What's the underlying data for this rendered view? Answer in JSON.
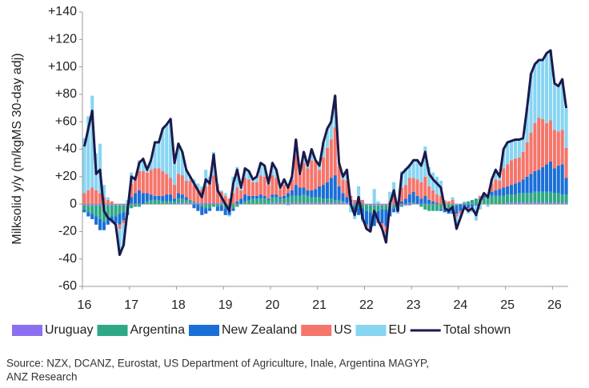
{
  "chart_data": {
    "type": "bar",
    "stacked": true,
    "y_label": "Milksolid y/y (m/kgMS 30-day adj)",
    "ylim": [
      -60,
      140
    ],
    "yticks": [
      -60,
      -40,
      -20,
      0,
      {
        "value": 20,
        "label": "+20"
      },
      {
        "value": 40,
        "label": "+40"
      },
      {
        "value": 60,
        "label": "+60"
      },
      {
        "value": 80,
        "label": "+80"
      },
      {
        "value": 100,
        "label": "+100"
      },
      {
        "value": 120,
        "label": "+120"
      },
      {
        "value": 140,
        "label": "+140"
      }
    ],
    "categories": [
      "16",
      null,
      null,
      null,
      null,
      null,
      null,
      null,
      null,
      null,
      null,
      null,
      "17",
      null,
      null,
      null,
      null,
      null,
      null,
      null,
      null,
      null,
      null,
      null,
      "18",
      null,
      null,
      null,
      null,
      null,
      null,
      null,
      null,
      null,
      null,
      null,
      "19",
      null,
      null,
      null,
      null,
      null,
      null,
      null,
      null,
      null,
      null,
      null,
      "20",
      null,
      null,
      null,
      null,
      null,
      null,
      null,
      null,
      null,
      null,
      null,
      "21",
      null,
      null,
      null,
      null,
      null,
      null,
      null,
      null,
      null,
      null,
      null,
      "22",
      null,
      null,
      null,
      null,
      null,
      null,
      null,
      null,
      null,
      null,
      null,
      "23",
      null,
      null,
      null,
      null,
      null,
      null,
      null,
      null,
      null,
      null,
      null,
      "24",
      null,
      null,
      null,
      null,
      null,
      null,
      null,
      null,
      null,
      null,
      null,
      "25",
      null,
      null,
      null,
      null,
      null,
      null,
      null,
      null,
      null,
      null,
      null,
      "26",
      null,
      null,
      null
    ],
    "series": [
      {
        "name": "Uruguay",
        "color": "#8c6ff0",
        "values": [
          -1,
          -1,
          -1,
          -1,
          -1,
          -1,
          -1,
          -1,
          -1,
          -1,
          -1,
          -1,
          0,
          0,
          0,
          0,
          0,
          0,
          0,
          0,
          0,
          0,
          0,
          0,
          1,
          1,
          1,
          1,
          1,
          1,
          1,
          1,
          1,
          1,
          1,
          1,
          0,
          0,
          0,
          0,
          0,
          0,
          0,
          0,
          0,
          0,
          0,
          0,
          1,
          1,
          1,
          1,
          1,
          1,
          1,
          1,
          1,
          1,
          1,
          1,
          1,
          1,
          1,
          1,
          1,
          1,
          1,
          1,
          1,
          1,
          1,
          1,
          -1,
          -1,
          -1,
          -1,
          -1,
          -1,
          -1,
          -1,
          -1,
          -1,
          -1,
          -1,
          0,
          0,
          0,
          0,
          0,
          0,
          0,
          0,
          0,
          0,
          0,
          0,
          0,
          0,
          0,
          0,
          0,
          0,
          0,
          0,
          0,
          0,
          0,
          0,
          1,
          1,
          1,
          1,
          1,
          1,
          1,
          1,
          1,
          1,
          1,
          1,
          1,
          1,
          1,
          1
        ]
      },
      {
        "name": "Argentina",
        "color": "#2ea886",
        "values": [
          -3,
          -5,
          -6,
          -8,
          -10,
          -12,
          -10,
          -8,
          -8,
          -6,
          -5,
          -4,
          -3,
          -2,
          -2,
          0,
          2,
          3,
          3,
          3,
          2,
          2,
          2,
          2,
          3,
          3,
          2,
          2,
          1,
          0,
          -2,
          -3,
          -3,
          -2,
          -2,
          -1,
          -3,
          -4,
          -3,
          -2,
          0,
          2,
          3,
          4,
          4,
          4,
          4,
          3,
          4,
          4,
          3,
          3,
          4,
          5,
          5,
          5,
          6,
          5,
          4,
          4,
          4,
          3,
          3,
          3,
          2,
          2,
          1,
          0,
          -1,
          -2,
          -3,
          -3,
          -4,
          -5,
          -5,
          -4,
          -3,
          -3,
          -2,
          -2,
          -2,
          -1,
          0,
          1,
          1,
          0,
          -2,
          -4,
          -5,
          -5,
          -5,
          -4,
          -3,
          -3,
          -2,
          -1,
          0,
          1,
          2,
          3,
          4,
          4,
          5,
          5,
          6,
          6,
          6,
          6,
          6,
          6,
          6,
          7,
          7,
          7,
          7,
          8,
          8,
          8,
          8,
          8,
          7,
          7,
          6,
          6
        ]
      },
      {
        "name": "New Zealand",
        "color": "#1a6fd8",
        "values": [
          -2,
          -3,
          -4,
          -6,
          -8,
          -6,
          -4,
          -3,
          -5,
          -8,
          -6,
          -3,
          5,
          8,
          10,
          8,
          6,
          4,
          3,
          3,
          4,
          5,
          5,
          2,
          4,
          3,
          2,
          0,
          -3,
          -5,
          -6,
          -4,
          -2,
          0,
          -3,
          -4,
          -5,
          -4,
          -2,
          2,
          4,
          5,
          3,
          2,
          2,
          3,
          2,
          1,
          2,
          2,
          1,
          2,
          3,
          4,
          8,
          6,
          5,
          4,
          5,
          6,
          8,
          10,
          12,
          15,
          18,
          10,
          6,
          4,
          2,
          -3,
          -5,
          -8,
          -10,
          -12,
          -10,
          -8,
          -10,
          -12,
          -6,
          -3,
          -2,
          2,
          4,
          6,
          8,
          6,
          4,
          6,
          3,
          2,
          1,
          -1,
          -3,
          -4,
          -5,
          -6,
          -5,
          -4,
          -3,
          -2,
          -1,
          0,
          1,
          2,
          3,
          4,
          5,
          6,
          6,
          7,
          8,
          8,
          10,
          12,
          14,
          15,
          16,
          18,
          20,
          22,
          18,
          20,
          22,
          12
        ]
      },
      {
        "name": "US",
        "color": "#f5756b",
        "values": [
          8,
          10,
          12,
          10,
          8,
          5,
          3,
          2,
          0,
          -3,
          -2,
          0,
          10,
          12,
          14,
          16,
          15,
          18,
          20,
          20,
          18,
          15,
          12,
          10,
          14,
          14,
          12,
          14,
          12,
          10,
          10,
          12,
          14,
          20,
          12,
          8,
          6,
          4,
          8,
          10,
          6,
          12,
          12,
          10,
          10,
          14,
          14,
          10,
          14,
          12,
          6,
          8,
          5,
          8,
          22,
          10,
          18,
          16,
          22,
          20,
          12,
          20,
          25,
          28,
          35,
          15,
          10,
          12,
          3,
          2,
          5,
          2,
          -2,
          -2,
          0,
          -1,
          -3,
          -5,
          2,
          6,
          2,
          10,
          10,
          12,
          10,
          12,
          12,
          14,
          10,
          8,
          6,
          6,
          2,
          2,
          3,
          -2,
          -2,
          0,
          -1,
          0,
          0,
          2,
          2,
          0,
          6,
          8,
          6,
          14,
          16,
          18,
          18,
          18,
          20,
          25,
          30,
          35,
          38,
          35,
          30,
          30,
          28,
          25,
          25,
          22
        ]
      },
      {
        "name": "EU",
        "color": "#88d5f2",
        "values": [
          40,
          54,
          67,
          27,
          36,
          9,
          2,
          -2,
          -1,
          -19,
          -16,
          3,
          8,
          0,
          8,
          9,
          2,
          7,
          19,
          19,
          31,
          36,
          43,
          16,
          22,
          17,
          8,
          3,
          4,
          4,
          2,
          12,
          5,
          17,
          2,
          1,
          2,
          -1,
          12,
          15,
          2,
          7,
          6,
          2,
          4,
          9,
          8,
          1,
          9,
          6,
          1,
          4,
          -1,
          2,
          11,
          0,
          8,
          2,
          8,
          1,
          3,
          11,
          14,
          13,
          23,
          2,
          2,
          8,
          -5,
          -6,
          7,
          -2,
          -1,
          0,
          11,
          2,
          -1,
          -7,
          7,
          10,
          -2,
          12,
          12,
          10,
          13,
          14,
          14,
          22,
          14,
          13,
          13,
          11,
          1,
          0,
          2,
          -9,
          -3,
          1,
          -3,
          -4,
          -11,
          -4,
          0,
          -2,
          3,
          7,
          3,
          14,
          16,
          14,
          14,
          13,
          10,
          25,
          43,
          43,
          42,
          43,
          51,
          51,
          34,
          33,
          37,
          29
        ]
      },
      {
        "name": "Total shown",
        "type": "line",
        "color": "#1b1a4b",
        "values": [
          42,
          55,
          68,
          22,
          25,
          -5,
          -10,
          -12,
          -15,
          -37,
          -30,
          -5,
          20,
          18,
          30,
          33,
          25,
          32,
          45,
          45,
          55,
          58,
          62,
          30,
          44,
          38,
          25,
          20,
          15,
          10,
          5,
          18,
          15,
          36,
          10,
          5,
          0,
          -5,
          15,
          25,
          12,
          26,
          24,
          18,
          20,
          30,
          28,
          15,
          30,
          25,
          12,
          18,
          12,
          20,
          47,
          22,
          38,
          28,
          40,
          32,
          28,
          45,
          55,
          60,
          79,
          30,
          20,
          25,
          0,
          -8,
          5,
          -10,
          -18,
          -20,
          -5,
          -12,
          -18,
          -28,
          0,
          10,
          -5,
          22,
          25,
          28,
          32,
          32,
          28,
          38,
          22,
          18,
          15,
          12,
          -3,
          -5,
          -2,
          -18,
          -10,
          -2,
          -5,
          -3,
          -8,
          2,
          8,
          5,
          18,
          25,
          20,
          40,
          45,
          46,
          47,
          47,
          48,
          70,
          95,
          102,
          105,
          105,
          110,
          112,
          88,
          86,
          91,
          70
        ]
      }
    ],
    "source": [
      "Source: NZX, DCANZ, Eurostat, US Department of Agriculture, Inale, Argentina MAGYP,",
      "ANZ Research"
    ]
  }
}
